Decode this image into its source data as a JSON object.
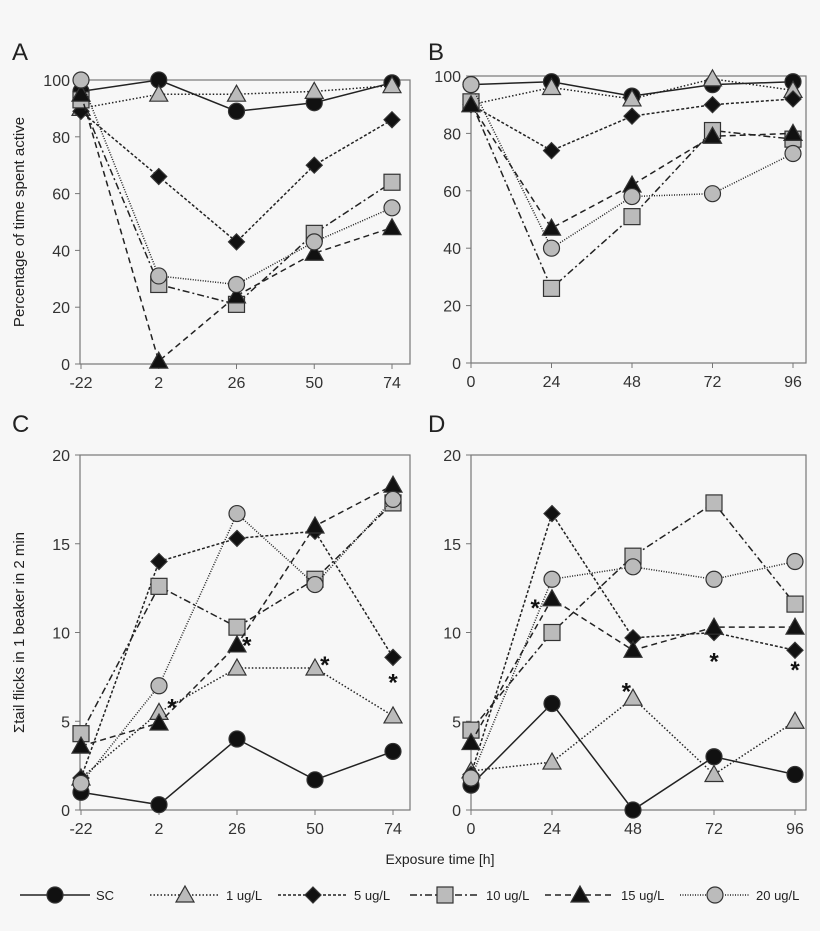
{
  "chart_data": [
    {
      "panel": "A",
      "type": "line",
      "ylabel": "Percentage of time spent active",
      "x": [
        -22,
        2,
        26,
        50,
        74
      ],
      "ylim": [
        0,
        100
      ],
      "yticks": [
        0,
        20,
        40,
        60,
        80,
        100
      ],
      "series": [
        {
          "name": "SC",
          "values": [
            96,
            100,
            89,
            92,
            99
          ]
        },
        {
          "name": "1 ug/L",
          "values": [
            90,
            95,
            95,
            96,
            98
          ]
        },
        {
          "name": "5 ug/L",
          "values": [
            89,
            66,
            43,
            70,
            86
          ]
        },
        {
          "name": "10 ug/L",
          "values": [
            93,
            28,
            21,
            46,
            64
          ]
        },
        {
          "name": "15 ug/L",
          "values": [
            95,
            1,
            24,
            39,
            48
          ]
        },
        {
          "name": "20 ug/L",
          "values": [
            100,
            31,
            28,
            43,
            55
          ]
        }
      ],
      "stars": []
    },
    {
      "panel": "B",
      "type": "line",
      "ylabel": "",
      "x": [
        0,
        24,
        48,
        72,
        96
      ],
      "ylim": [
        0,
        100
      ],
      "yticks": [
        0,
        20,
        40,
        60,
        80,
        100
      ],
      "series": [
        {
          "name": "SC",
          "values": [
            97,
            98,
            93,
            97,
            98
          ]
        },
        {
          "name": "1 ug/L",
          "values": [
            90,
            96,
            92,
            99,
            95
          ]
        },
        {
          "name": "5 ug/L",
          "values": [
            90,
            74,
            86,
            90,
            92
          ]
        },
        {
          "name": "10 ug/L",
          "values": [
            91,
            26,
            51,
            81,
            78
          ]
        },
        {
          "name": "15 ug/L",
          "values": [
            90,
            47,
            62,
            79,
            80
          ]
        },
        {
          "name": "20 ug/L",
          "values": [
            97,
            40,
            58,
            59,
            73
          ]
        }
      ],
      "stars": []
    },
    {
      "panel": "C",
      "type": "line",
      "ylabel": "Σtail flicks in 1 beaker in 2 min",
      "x": [
        -22,
        2,
        26,
        50,
        74
      ],
      "ylim": [
        0,
        20
      ],
      "yticks": [
        0,
        5,
        10,
        15,
        20
      ],
      "series": [
        {
          "name": "SC",
          "values": [
            1.0,
            0.3,
            4.0,
            1.7,
            3.3
          ]
        },
        {
          "name": "1 ug/L",
          "values": [
            1.8,
            5.5,
            8,
            8,
            5.3
          ]
        },
        {
          "name": "5 ug/L",
          "values": [
            1.8,
            14,
            15.3,
            15.7,
            8.6
          ]
        },
        {
          "name": "10 ug/L",
          "values": [
            4.3,
            12.6,
            10.3,
            13,
            17.3
          ]
        },
        {
          "name": "15 ug/L",
          "values": [
            3.6,
            4.9,
            9.3,
            16,
            18.3
          ]
        },
        {
          "name": "20 ug/L",
          "values": [
            1.5,
            7,
            16.7,
            12.7,
            17.5
          ]
        }
      ],
      "stars": [
        [
          6,
          6
        ],
        [
          29,
          9.5
        ],
        [
          53,
          8.4
        ],
        [
          74,
          7.4
        ]
      ]
    },
    {
      "panel": "D",
      "type": "line",
      "ylabel": "",
      "x": [
        0,
        24,
        48,
        72,
        96
      ],
      "ylim": [
        0,
        20
      ],
      "yticks": [
        0,
        5,
        10,
        15,
        20
      ],
      "series": [
        {
          "name": "SC",
          "values": [
            1.4,
            6,
            0,
            3,
            2
          ]
        },
        {
          "name": "1 ug/L",
          "values": [
            2.2,
            2.7,
            6.3,
            2,
            5
          ]
        },
        {
          "name": "5 ug/L",
          "values": [
            2,
            16.7,
            9.7,
            10,
            9
          ]
        },
        {
          "name": "10 ug/L",
          "values": [
            4.5,
            10,
            14.3,
            17.3,
            11.6
          ]
        },
        {
          "name": "15 ug/L",
          "values": [
            3.8,
            11.9,
            9,
            10.3,
            10.3
          ]
        },
        {
          "name": "20 ug/L",
          "values": [
            1.8,
            13,
            13.7,
            13,
            14
          ]
        }
      ],
      "stars": [
        [
          19,
          11.6
        ],
        [
          46,
          6.9
        ],
        [
          72,
          8.6
        ],
        [
          96,
          8.1
        ]
      ]
    }
  ],
  "xlabel": "Exposure time [h]",
  "star_symbol": "*",
  "legend": [
    "SC",
    "1 ug/L",
    "5 ug/L",
    "10 ug/L",
    "15 ug/L",
    "20 ug/L"
  ],
  "legend_placement": "bottom"
}
